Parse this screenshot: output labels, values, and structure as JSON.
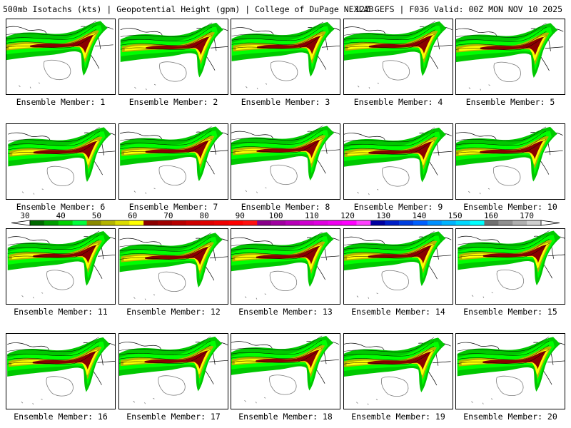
{
  "header": {
    "left": "500mb Isotachs (kts) | Geopotential Height (gpm) | College of DuPage NEXLAB",
    "right": "12Z GEFS | F036 Valid: 00Z MON NOV 10 2025"
  },
  "members": [
    {
      "label": "Ensemble Member: 1"
    },
    {
      "label": "Ensemble Member: 2"
    },
    {
      "label": "Ensemble Member: 3"
    },
    {
      "label": "Ensemble Member: 4"
    },
    {
      "label": "Ensemble Member: 5"
    },
    {
      "label": "Ensemble Member: 6"
    },
    {
      "label": "Ensemble Member: 7"
    },
    {
      "label": "Ensemble Member: 8"
    },
    {
      "label": "Ensemble Member: 9"
    },
    {
      "label": "Ensemble Member: 10"
    },
    {
      "label": "Ensemble Member: 11"
    },
    {
      "label": "Ensemble Member: 12"
    },
    {
      "label": "Ensemble Member: 13"
    },
    {
      "label": "Ensemble Member: 14"
    },
    {
      "label": "Ensemble Member: 15"
    },
    {
      "label": "Ensemble Member: 16"
    },
    {
      "label": "Ensemble Member: 17"
    },
    {
      "label": "Ensemble Member: 18"
    },
    {
      "label": "Ensemble Member: 19"
    },
    {
      "label": "Ensemble Member: 20"
    }
  ],
  "colorbar": {
    "labels": [
      "30",
      "40",
      "50",
      "60",
      "70",
      "80",
      "90",
      "100",
      "110",
      "120",
      "130",
      "140",
      "150",
      "160",
      "170"
    ],
    "colors": [
      "#006a00",
      "#009e00",
      "#00d200",
      "#00ff3c",
      "#8a8a00",
      "#b4b400",
      "#dcdc00",
      "#ffff00",
      "#8a0000",
      "#a00000",
      "#b80000",
      "#d00000",
      "#e00000",
      "#f00000",
      "#ff0000",
      "#ff1010",
      "#8a008a",
      "#a000a0",
      "#b800b8",
      "#d000d0",
      "#e000e0",
      "#f000f0",
      "#ff00ff",
      "#ff40ff",
      "#0000a0",
      "#0020c8",
      "#0040e0",
      "#0060ff",
      "#0090ff",
      "#00b4ff",
      "#00d8ff",
      "#00ffff",
      "#707070",
      "#909090",
      "#b0b0b0",
      "#d0d0d0"
    ]
  },
  "map_colors": {
    "green_dark": "#009600",
    "green": "#00c800",
    "green_light": "#00ff00",
    "olive": "#b4b400",
    "yellow": "#ffff00",
    "maroon": "#8a0000",
    "outline": "#000000",
    "coast_gray": "#7a7a7a"
  }
}
